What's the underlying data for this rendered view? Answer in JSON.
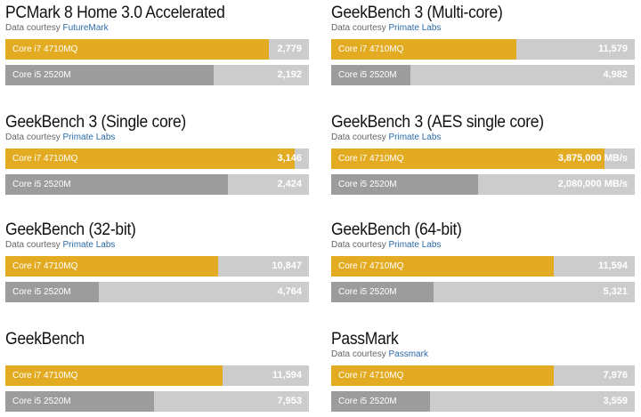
{
  "courtesy_prefix": "Data courtesy",
  "chart_data": [
    {
      "type": "bar",
      "title": "PCMark 8 Home 3.0 Accelerated",
      "source": "FutureMark",
      "categories": [
        "Core i7 4710MQ",
        "Core i5 2520M"
      ],
      "values": [
        2779,
        2192
      ],
      "value_labels": [
        "2,779",
        "2,192"
      ],
      "xlim": [
        0,
        3200
      ],
      "colors": [
        "#e3ab22",
        "#9c9c9c"
      ]
    },
    {
      "type": "bar",
      "title": "GeekBench 3 (Multi-core)",
      "source": "Primate Labs",
      "categories": [
        "Core i7 4710MQ",
        "Core i5 2520M"
      ],
      "values": [
        11579,
        4982
      ],
      "value_labels": [
        "11,579",
        "4,982"
      ],
      "xlim": [
        0,
        19000
      ],
      "colors": [
        "#e3ab22",
        "#9c9c9c"
      ]
    },
    {
      "type": "bar",
      "title": "GeekBench 3 (Single core)",
      "source": "Primate Labs",
      "categories": [
        "Core i7 4710MQ",
        "Core i5 2520M"
      ],
      "values": [
        3146,
        2424
      ],
      "value_labels": [
        "3,146",
        "2,424"
      ],
      "xlim": [
        0,
        3300
      ],
      "colors": [
        "#e3ab22",
        "#9c9c9c"
      ]
    },
    {
      "type": "bar",
      "title": "GeekBench 3 (AES single core)",
      "source": "Primate Labs",
      "categories": [
        "Core i7 4710MQ",
        "Core i5 2520M"
      ],
      "values": [
        3875000,
        2080000
      ],
      "value_labels": [
        "3,875,000 MB/s",
        "2,080,000 MB/s"
      ],
      "xlim": [
        0,
        4300000
      ],
      "colors": [
        "#e3ab22",
        "#9c9c9c"
      ]
    },
    {
      "type": "bar",
      "title": "GeekBench (32-bit)",
      "source": "Primate Labs",
      "categories": [
        "Core i7 4710MQ",
        "Core i5 2520M"
      ],
      "values": [
        10847,
        4764
      ],
      "value_labels": [
        "10,847",
        "4,764"
      ],
      "xlim": [
        0,
        15500
      ],
      "colors": [
        "#e3ab22",
        "#9c9c9c"
      ]
    },
    {
      "type": "bar",
      "title": "GeekBench (64-bit)",
      "source": "Primate Labs",
      "categories": [
        "Core i7 4710MQ",
        "Core i5 2520M"
      ],
      "values": [
        11594,
        5321
      ],
      "value_labels": [
        "11,594",
        "5,321"
      ],
      "xlim": [
        0,
        15800
      ],
      "colors": [
        "#e3ab22",
        "#9c9c9c"
      ]
    },
    {
      "type": "bar",
      "title": "GeekBench",
      "source": "",
      "categories": [
        "Core i7 4710MQ",
        "Core i5 2520M"
      ],
      "values": [
        11594,
        7953
      ],
      "value_labels": [
        "11,594",
        "7,953"
      ],
      "xlim": [
        0,
        16200
      ],
      "colors": [
        "#e3ab22",
        "#9c9c9c"
      ]
    },
    {
      "type": "bar",
      "title": "PassMark",
      "source": "Passmark",
      "categories": [
        "Core i7 4710MQ",
        "Core i5 2520M"
      ],
      "values": [
        7976,
        3559
      ],
      "value_labels": [
        "7,976",
        "3,559"
      ],
      "xlim": [
        0,
        10900
      ],
      "colors": [
        "#e3ab22",
        "#9c9c9c"
      ]
    }
  ]
}
